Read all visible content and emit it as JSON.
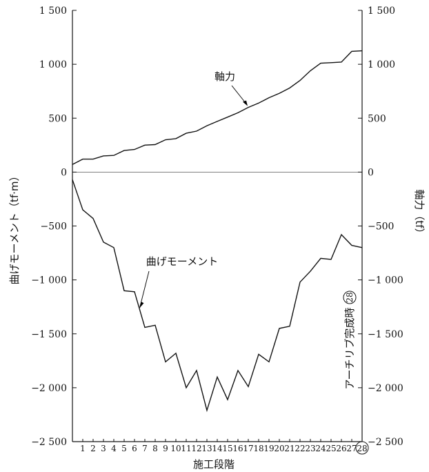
{
  "chart_data": {
    "type": "line",
    "x": [
      0,
      1,
      2,
      3,
      4,
      5,
      6,
      7,
      8,
      9,
      10,
      11,
      12,
      13,
      14,
      15,
      16,
      17,
      18,
      19,
      20,
      21,
      22,
      23,
      24,
      25,
      26,
      27,
      28
    ],
    "x_tick_labels": [
      "1",
      "2",
      "3",
      "4",
      "5",
      "6",
      "7",
      "8",
      "9",
      "10",
      "11",
      "12",
      "13",
      "14",
      "15",
      "16",
      "17",
      "18",
      "19",
      "20",
      "21",
      "22",
      "23",
      "24",
      "25",
      "26",
      "27",
      "28"
    ],
    "last_tick_label_circled": true,
    "xlabel": "施工段階",
    "ylabel_left": "曲げモーメント（tf·m）",
    "ylabel_right": "軸力（tf）",
    "ylim": [
      -2500,
      1500
    ],
    "yticks": [
      1500,
      1000,
      500,
      0,
      -500,
      -1000,
      -1500,
      -2000,
      -2500
    ],
    "ytick_labels": [
      "1 500",
      "1 000",
      "500",
      "0",
      "−500",
      "−1 000",
      "−1 500",
      "−2 000",
      "−2 500"
    ],
    "zero_line": true,
    "series": [
      {
        "name": "軸力",
        "axis": "right",
        "values": [
          70,
          120,
          120,
          150,
          155,
          200,
          210,
          250,
          255,
          300,
          310,
          360,
          380,
          430,
          470,
          510,
          550,
          600,
          640,
          690,
          730,
          780,
          850,
          940,
          1010,
          1015,
          1020,
          1120,
          1125
        ]
      },
      {
        "name": "曲げモーメント",
        "axis": "left",
        "values": [
          -70,
          -350,
          -430,
          -650,
          -700,
          -1100,
          -1110,
          -1440,
          -1420,
          -1760,
          -1680,
          -2000,
          -1840,
          -2210,
          -1900,
          -2110,
          -1840,
          -1990,
          -1690,
          -1760,
          -1450,
          -1430,
          -1020,
          -920,
          -800,
          -810,
          -580,
          -680,
          -700
        ]
      }
    ],
    "annotations": [
      {
        "text": "軸力",
        "target_series": 0
      },
      {
        "text": "曲げモーメント",
        "target_series": 1
      },
      {
        "text": "アーチリブ完成時",
        "marker": "28"
      }
    ]
  }
}
